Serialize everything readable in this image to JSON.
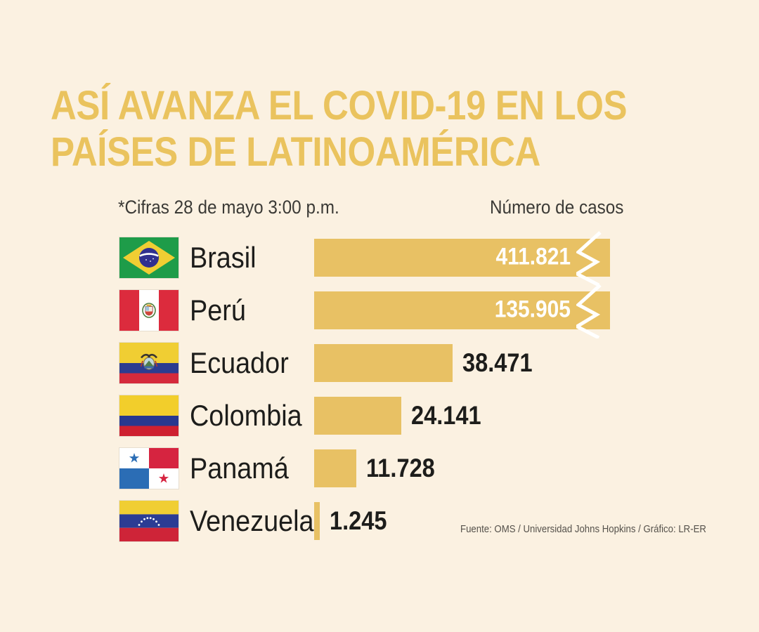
{
  "title": {
    "line1": "ASÍ AVANZA EL COVID-19 EN LOS",
    "line2": "PAÍSES DE LATINOAMÉRICA"
  },
  "meta": {
    "note": "*Cifras 28 de mayo 3:00 p.m.",
    "axis_label": "Número de casos",
    "source": "Fuente: OMS / Universidad Johns Hopkins / Gráfico: LR-ER"
  },
  "colors": {
    "background": "#FBF1E1",
    "accent_gold": "#E8C164",
    "title_gold": "#EAC35E",
    "text_dark": "#1D1D1B",
    "value_in_bar_text": "#FFFFFF"
  },
  "chart_data": {
    "type": "bar",
    "orientation": "horizontal",
    "title": "Así avanza el COVID-19 en los países de Latinoamérica",
    "note": "*Cifras 28 de mayo 3:00 p.m.",
    "value_axis_label": "Número de casos",
    "source": "Fuente: OMS / Universidad Johns Hopkins / Gráfico: LR-ER",
    "categories": [
      "Brasil",
      "Perú",
      "Ecuador",
      "Colombia",
      "Panamá",
      "Venezuela"
    ],
    "values": [
      411821,
      135905,
      38471,
      24141,
      11728,
      1245
    ],
    "rows": [
      {
        "country": "Brasil",
        "flag": "brasil-flag",
        "value": 411821,
        "value_label": "411.821",
        "truncated": true
      },
      {
        "country": "Perú",
        "flag": "peru-flag",
        "value": 135905,
        "value_label": "135.905",
        "truncated": true
      },
      {
        "country": "Ecuador",
        "flag": "ecuador-flag",
        "value": 38471,
        "value_label": "38.471",
        "truncated": false
      },
      {
        "country": "Colombia",
        "flag": "colombia-flag",
        "value": 24141,
        "value_label": "24.141",
        "truncated": false
      },
      {
        "country": "Panamá",
        "flag": "panama-flag",
        "value": 11728,
        "value_label": "11.728",
        "truncated": false
      },
      {
        "country": "Venezuela",
        "flag": "venezuela-flag",
        "value": 1245,
        "value_label": "1.245",
        "truncated": false
      }
    ],
    "bars_truncated_note": "Brasil and Perú bars are cut with a white zigzag break mark",
    "grid": false,
    "legend": false
  }
}
